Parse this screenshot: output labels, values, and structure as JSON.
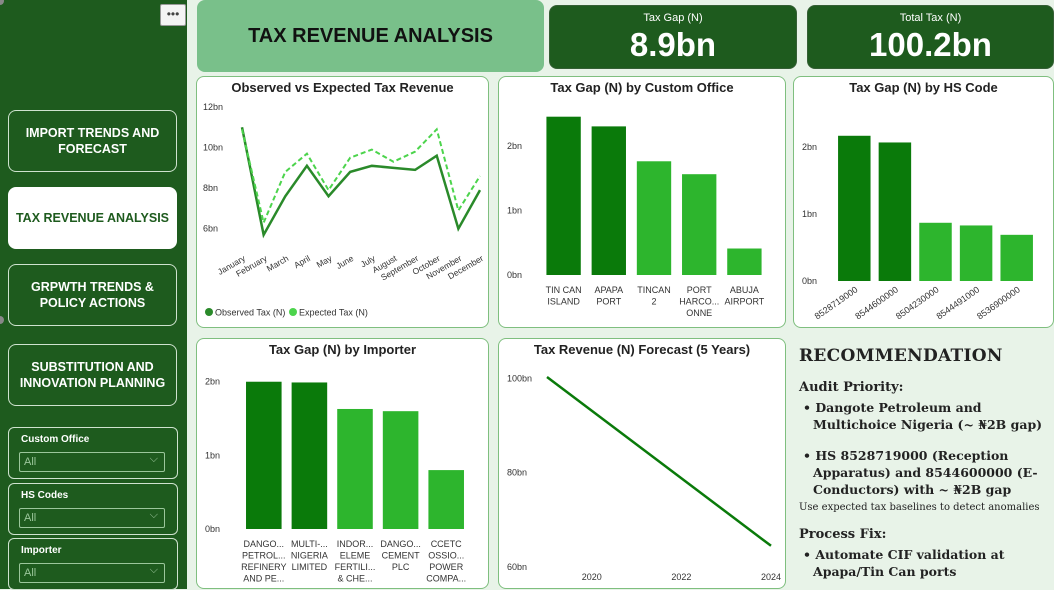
{
  "sidebar": {
    "more_label": "•••",
    "nav": [
      {
        "label": "IMPORT TRENDS AND FORECAST",
        "active": false
      },
      {
        "label": "TAX REVENUE ANALYSIS",
        "active": true
      },
      {
        "label": "GRPWTH TRENDS & POLICY ACTIONS",
        "active": false
      },
      {
        "label": "SUBSTITUTION AND INNOVATION PLANNING",
        "active": false
      }
    ],
    "slicers": [
      {
        "title": "Custom Office",
        "value": "All"
      },
      {
        "title": "HS Codes",
        "value": "All"
      },
      {
        "title": "Importer",
        "value": "All"
      }
    ]
  },
  "header": {
    "title": "TAX REVENUE ANALYSIS",
    "kpis": [
      {
        "label": "Tax Gap (N)",
        "value": "8.9bn"
      },
      {
        "label": "Total Tax (N)",
        "value": "100.2bn"
      }
    ]
  },
  "colors": {
    "dark": "#1e5b1e",
    "bar_dark": "#0a7a0a",
    "bar_light": "#2db52d",
    "line_dark": "#2a8a2a",
    "line_light": "#4cd44c"
  },
  "chart_data": [
    {
      "type": "line",
      "title": "Observed vs Expected Tax Revenue",
      "categories": [
        "January",
        "February",
        "March",
        "April",
        "May",
        "June",
        "July",
        "August",
        "September",
        "October",
        "November",
        "December"
      ],
      "y_ticks": [
        "12bn",
        "10bn",
        "8bn",
        "6bn"
      ],
      "ylim": [
        5,
        12
      ],
      "series": [
        {
          "name": "Observed Tax (N)",
          "values": [
            11.0,
            5.7,
            7.6,
            9.1,
            7.6,
            8.8,
            9.1,
            9.0,
            8.9,
            9.6,
            6.0,
            7.9
          ]
        },
        {
          "name": "Expected Tax (N)",
          "values": [
            10.9,
            6.3,
            8.8,
            9.7,
            7.9,
            9.5,
            9.9,
            9.3,
            9.8,
            10.9,
            6.9,
            8.6
          ]
        }
      ]
    },
    {
      "type": "bar",
      "title": "Tax Gap (N) by Custom Office",
      "categories": [
        "TIN CAN ISLAND",
        "APAPA PORT",
        "TINCAN 2",
        "PORT HARCO... ONNE",
        "ABUJA AIRPORT"
      ],
      "category_lines": [
        [
          "TIN CAN",
          "ISLAND"
        ],
        [
          "APAPA",
          "PORT"
        ],
        [
          "TINCAN",
          "2"
        ],
        [
          "PORT",
          "HARCO...",
          "ONNE"
        ],
        [
          "ABUJA",
          "AIRPORT"
        ]
      ],
      "values": [
        2.45,
        2.3,
        1.76,
        1.56,
        0.41
      ],
      "y_ticks": [
        "2bn",
        "1bn",
        "0bn"
      ],
      "ylim": [
        0,
        2.6
      ]
    },
    {
      "type": "bar",
      "title": "Tax Gap (N) by HS Code",
      "categories": [
        "8528719000",
        "8544600000",
        "8504230000",
        "8544491000",
        "8536900000"
      ],
      "values": [
        2.17,
        2.07,
        0.87,
        0.83,
        0.69
      ],
      "y_ticks": [
        "2bn",
        "1bn",
        "0bn"
      ],
      "ylim": [
        0,
        2.6
      ]
    },
    {
      "type": "bar",
      "title": "Tax Gap (N) by Importer",
      "categories": [
        "DANGO... PETROL... REFINERY AND PE...",
        "MULTI-... NIGERIA LIMITED",
        "INDOR... ELEME FERTILI... & CHE...",
        "DANGO... CEMENT PLC",
        "CCETC OSSIO... POWER COMPA..."
      ],
      "category_lines": [
        [
          "DANGO...",
          "PETROL...",
          "REFINERY",
          "AND PE..."
        ],
        [
          "MULTI-...",
          "NIGERIA",
          "LIMITED"
        ],
        [
          "INDOR...",
          "ELEME",
          "FERTILI...",
          "& CHE..."
        ],
        [
          "DANGO...",
          "CEMENT",
          "PLC"
        ],
        [
          "CCETC",
          "OSSIO...",
          "POWER",
          "COMPA..."
        ]
      ],
      "values": [
        2.0,
        1.99,
        1.63,
        1.6,
        0.8
      ],
      "y_ticks": [
        "2bn",
        "1bn",
        "0bn"
      ],
      "ylim": [
        0,
        2.2
      ]
    },
    {
      "type": "line",
      "title": "Tax Revenue (N) Forecast (5 Years)",
      "x": [
        2019,
        2024
      ],
      "x_ticks": [
        "2020",
        "2022",
        "2024"
      ],
      "values": [
        100.3,
        64.5
      ],
      "y_ticks": [
        "100bn",
        "80bn",
        "60bn"
      ],
      "ylim": [
        60,
        102
      ]
    }
  ],
  "recommendation": {
    "title": "RECOMMENDATION",
    "audit_heading": "Audit Priority:",
    "audit_items": [
      "• Dangote Petroleum and Multichoice Nigeria (~ ₦2B gap)",
      "• HS 8528719000 (Reception Apparatus) and 8544600000 (E-Conductors) with ~ ₦2B gap"
    ],
    "note": "Use expected tax baselines to detect anomalies",
    "process_heading": "Process Fix:",
    "process_items": [
      "• Automate CIF validation at Apapa/Tin Can ports"
    ]
  }
}
